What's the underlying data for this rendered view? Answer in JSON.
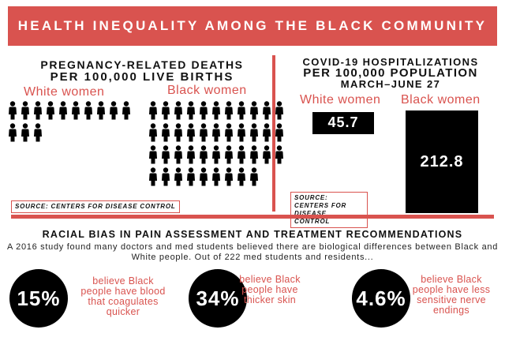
{
  "banner": {
    "title": "HEALTH INEQUALITY AMONG THE BLACK COMMUNITY"
  },
  "colors": {
    "accent": "#d9534f",
    "dark": "#000000"
  },
  "pregnancy": {
    "title_line1": "PREGNANCY-RELATED DEATHS",
    "title_line2": "PER 100,000 LIVE BIRTHS",
    "white_label": "White women",
    "black_label": "Black women",
    "white_icon_count": 13,
    "black_icon_count": 42,
    "icon": "person-icon",
    "source": "SOURCE: CENTERS FOR DISEASE CONTROL"
  },
  "covid": {
    "title_line1": "COVID-19 HOSPITALIZATIONS",
    "title_line2": "PER 100,000 POPULATION",
    "title_line3": "MARCH–JUNE 27",
    "source": "SOURCE: CENTERS FOR DISEASE CONTROL"
  },
  "chart_data": {
    "type": "bar",
    "categories": [
      "White women",
      "Black women"
    ],
    "values": [
      45.7,
      212.8
    ],
    "data_labels": [
      "45.7",
      "212.8"
    ],
    "title": "COVID-19 HOSPITALIZATIONS PER 100,000 POPULATION MARCH–JUNE 27",
    "xlabel": "",
    "ylabel": "",
    "ylim": [
      0,
      212.8
    ],
    "grid": false
  },
  "bias": {
    "title": "RACIAL BIAS IN PAIN ASSESSMENT AND TREATMENT RECOMMENDATIONS",
    "intro": "A 2016 study found many doctors and med students believed there are biological differences between Black and White people. Out of 222 med students and residents...",
    "stats": [
      {
        "value": "15%",
        "text": "believe Black people have blood that coagulates quicker"
      },
      {
        "value": "34%",
        "text": "believe Black people have thicker skin"
      },
      {
        "value": "4.6%",
        "text": "believe Black people have less sensitive nerve endings"
      }
    ]
  }
}
